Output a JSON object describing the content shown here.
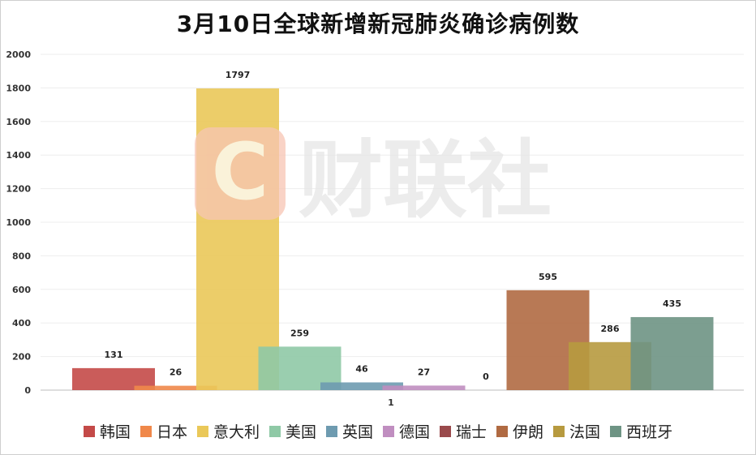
{
  "chart_data": {
    "type": "bar",
    "title": "3月10日全球新增新冠肺炎确诊病例数",
    "xlabel": "",
    "ylabel": "",
    "categories": [
      "1"
    ],
    "ylim": [
      0,
      2000
    ],
    "yticks": [
      0,
      200,
      400,
      600,
      800,
      1000,
      1200,
      1400,
      1600,
      1800,
      2000
    ],
    "grid": true,
    "legend_position": "bottom",
    "series": [
      {
        "name": "韩国",
        "values": [
          131
        ],
        "color": "#c44a48"
      },
      {
        "name": "日本",
        "values": [
          26
        ],
        "color": "#f0884a"
      },
      {
        "name": "意大利",
        "values": [
          1797
        ],
        "color": "#eac859"
      },
      {
        "name": "美国",
        "values": [
          259
        ],
        "color": "#8fc9a6"
      },
      {
        "name": "英国",
        "values": [
          46
        ],
        "color": "#6e9bb0"
      },
      {
        "name": "德国",
        "values": [
          27
        ],
        "color": "#c08ec0"
      },
      {
        "name": "瑞士",
        "values": [
          0
        ],
        "color": "#9a4a4c"
      },
      {
        "name": "伊朗",
        "values": [
          595
        ],
        "color": "#b06a42"
      },
      {
        "name": "法国",
        "values": [
          286
        ],
        "color": "#b79a3f"
      },
      {
        "name": "西班牙",
        "values": [
          435
        ],
        "color": "#6e9484"
      }
    ]
  },
  "watermark": {
    "text": "财联社",
    "logo_letter": "C"
  }
}
